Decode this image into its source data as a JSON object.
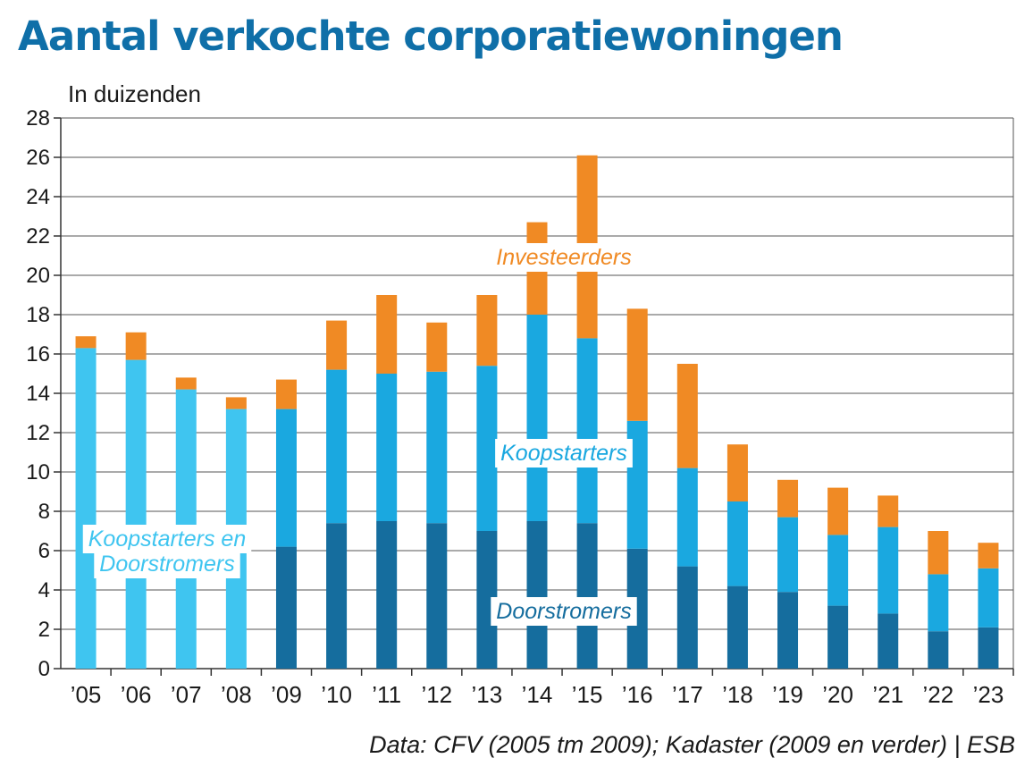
{
  "chart_data": {
    "type": "bar",
    "stacked": true,
    "title": "Aantal verkochte corporatiewoningen",
    "ylabel": "In duizenden",
    "source": "Data: CFV (2005 tm 2009); Kadaster (2009 en verder) | ESB",
    "categories": [
      "’05",
      "’06",
      "’07",
      "’08",
      "’09",
      "’10",
      "’11",
      "’12",
      "’13",
      "’14",
      "’15",
      "’16",
      "’17",
      "’18",
      "’19",
      "’20",
      "’21",
      "’22",
      "’23"
    ],
    "ylim": [
      0,
      28
    ],
    "yticks": [
      0,
      2,
      4,
      6,
      8,
      10,
      12,
      14,
      16,
      18,
      20,
      22,
      24,
      26,
      28
    ],
    "grid": true,
    "colors": {
      "combined": "#3fc5f0",
      "koopstarters": "#1aa8e0",
      "doorstromers": "#156d9e",
      "investeerders": "#f08a24"
    },
    "series": [
      {
        "name": "Koopstarters en Doorstromers",
        "key": "combined",
        "values": [
          16.3,
          15.7,
          14.2,
          13.2,
          0,
          0,
          0,
          0,
          0,
          0,
          0,
          0,
          0,
          0,
          0,
          0,
          0,
          0,
          0
        ]
      },
      {
        "name": "Doorstromers",
        "key": "doorstromers",
        "values": [
          0,
          0,
          0,
          0,
          6.2,
          7.4,
          7.5,
          7.4,
          7.0,
          7.5,
          7.4,
          6.1,
          5.2,
          4.2,
          3.9,
          3.2,
          2.8,
          1.9,
          2.1
        ]
      },
      {
        "name": "Koopstarters",
        "key": "koopstarters",
        "values": [
          0,
          0,
          0,
          0,
          7.0,
          7.8,
          7.5,
          7.7,
          8.4,
          10.5,
          9.4,
          6.5,
          5.0,
          4.3,
          3.8,
          3.6,
          4.4,
          2.9,
          3.0
        ]
      },
      {
        "name": "Investeerders",
        "key": "investeerders",
        "values": [
          0.6,
          1.4,
          0.6,
          0.6,
          1.5,
          2.5,
          4.0,
          2.5,
          3.6,
          4.7,
          9.3,
          5.7,
          5.3,
          2.9,
          1.9,
          2.4,
          1.6,
          2.2,
          1.3
        ]
      }
    ],
    "annotations": [
      {
        "text": "Investeerders",
        "color": "#f08a24"
      },
      {
        "text": "Koopstarters",
        "color": "#1aa8e0"
      },
      {
        "text": "Koopstarters en",
        "color": "#3fc5f0"
      },
      {
        "text": "Doorstromers",
        "color": "#3fc5f0"
      },
      {
        "text": "Doorstromers",
        "color": "#156d9e"
      }
    ]
  }
}
